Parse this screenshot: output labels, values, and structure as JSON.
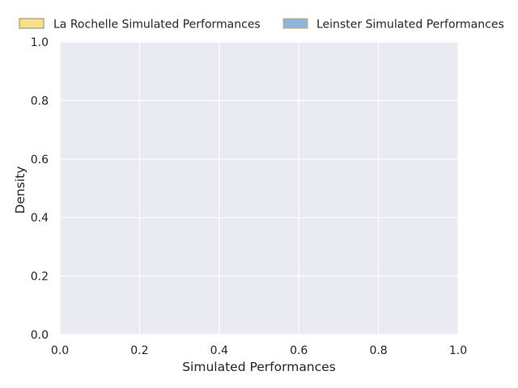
{
  "chart_data": {
    "type": "area",
    "title": "",
    "xlabel": "Simulated Performances",
    "ylabel": "Density",
    "xlim": [
      0.0,
      1.0
    ],
    "ylim": [
      0.0,
      1.0
    ],
    "x_ticks": [
      "0.0",
      "0.2",
      "0.4",
      "0.6",
      "0.8",
      "1.0"
    ],
    "y_ticks": [
      "0.0",
      "0.2",
      "0.4",
      "0.6",
      "0.8",
      "1.0"
    ],
    "grid": true,
    "legend_position": "top",
    "series": [
      {
        "name": "La Rochelle Simulated Performances",
        "color": "#f5e08e",
        "edge_color": "#8a8a6a",
        "values": []
      },
      {
        "name": "Leinster Simulated Performances",
        "color": "#8eb3dc",
        "edge_color": "#c4b060",
        "values": []
      }
    ],
    "background_color": "#eaeaf2",
    "grid_color": "#ffffff"
  }
}
